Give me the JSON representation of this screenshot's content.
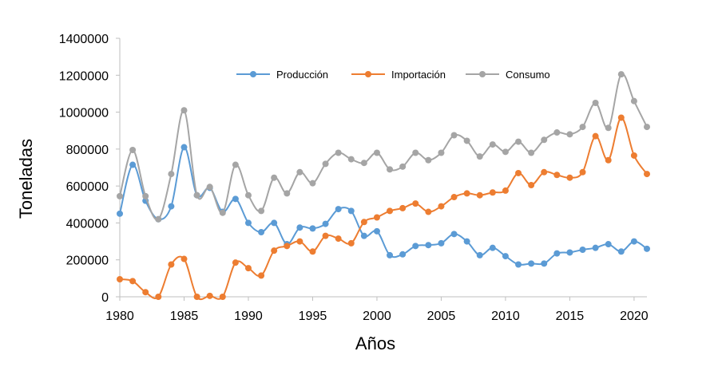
{
  "chart_data": {
    "type": "line",
    "title": "",
    "xlabel": "Años",
    "ylabel": "Toneladas",
    "xlim": [
      1980,
      2021
    ],
    "ylim": [
      0,
      1400000
    ],
    "x_ticks": [
      "1980",
      "1985",
      "1990",
      "1995",
      "2000",
      "2005",
      "2010",
      "2015",
      "2020"
    ],
    "y_ticks": [
      "0",
      "200000",
      "400000",
      "600000",
      "800000",
      "1000000",
      "1200000",
      "1400000"
    ],
    "legend_position": "top-center",
    "grid": false,
    "x": [
      1980,
      1981,
      1982,
      1983,
      1984,
      1985,
      1986,
      1987,
      1988,
      1989,
      1990,
      1991,
      1992,
      1993,
      1994,
      1995,
      1996,
      1997,
      1998,
      1999,
      2000,
      2001,
      2002,
      2003,
      2004,
      2005,
      2006,
      2007,
      2008,
      2009,
      2010,
      2011,
      2012,
      2013,
      2014,
      2015,
      2016,
      2017,
      2018,
      2019,
      2020,
      2021
    ],
    "series": [
      {
        "name": "Producción",
        "color": "#5b9bd5",
        "values": [
          450000,
          715000,
          520000,
          420000,
          490000,
          810000,
          550000,
          590000,
          460000,
          530000,
          400000,
          350000,
          400000,
          285000,
          375000,
          370000,
          395000,
          475000,
          465000,
          330000,
          355000,
          225000,
          230000,
          275000,
          280000,
          290000,
          340000,
          300000,
          225000,
          265000,
          220000,
          175000,
          180000,
          180000,
          235000,
          240000,
          255000,
          265000,
          285000,
          245000,
          300000,
          260000
        ]
      },
      {
        "name": "Importación",
        "color": "#ed7d31",
        "values": [
          95000,
          85000,
          25000,
          0,
          175000,
          205000,
          0,
          5000,
          0,
          185000,
          155000,
          115000,
          250000,
          275000,
          300000,
          245000,
          330000,
          315000,
          290000,
          405000,
          430000,
          465000,
          480000,
          505000,
          460000,
          490000,
          540000,
          560000,
          550000,
          565000,
          575000,
          670000,
          605000,
          675000,
          660000,
          645000,
          675000,
          870000,
          740000,
          970000,
          765000,
          665000
        ]
      },
      {
        "name": "Consumo",
        "color": "#a5a5a5",
        "values": [
          545000,
          795000,
          545000,
          420000,
          665000,
          1010000,
          550000,
          595000,
          455000,
          715000,
          550000,
          465000,
          645000,
          560000,
          675000,
          615000,
          720000,
          780000,
          745000,
          725000,
          780000,
          690000,
          705000,
          780000,
          740000,
          780000,
          875000,
          845000,
          760000,
          825000,
          785000,
          840000,
          780000,
          850000,
          890000,
          880000,
          920000,
          1050000,
          915000,
          1205000,
          1060000,
          920000
        ]
      }
    ]
  }
}
